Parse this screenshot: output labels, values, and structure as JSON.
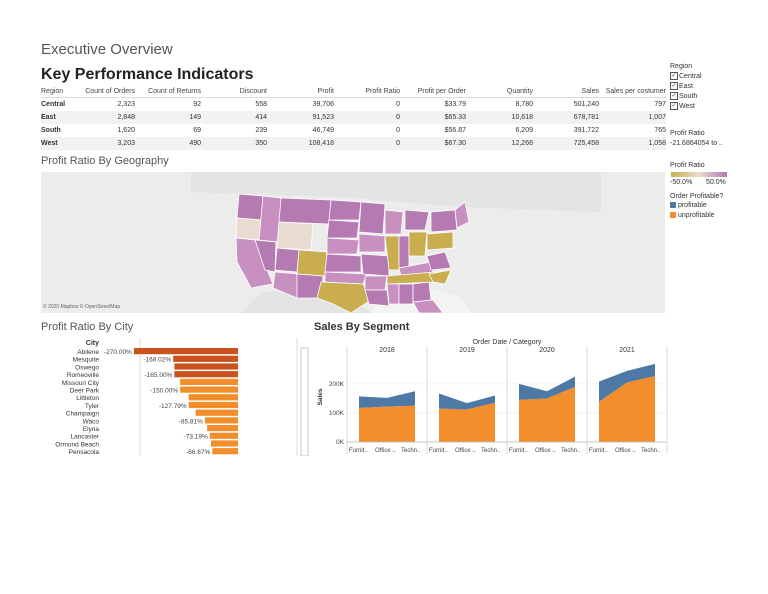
{
  "page": {
    "title": "Executive Overview",
    "kpi_title": "Key Performance Indicators",
    "geo_title": "Profit Ratio By Geography",
    "city_title": "Profit Ratio By City",
    "segment_title": "Sales By Segment",
    "map_credit": "© 2025 Mapbox © OpenStreetMap"
  },
  "kpi": {
    "columns": [
      "Region",
      "Count of Orders",
      "Count of Returns",
      "Discount",
      "Profit",
      "Profit Ratio",
      "Profit per Order",
      "Quantity",
      "Sales",
      "Sales per costumer"
    ],
    "rows": [
      [
        "Central",
        "2,323",
        "92",
        "558",
        "39,706",
        "0",
        "$33.79",
        "8,780",
        "501,240",
        "797"
      ],
      [
        "East",
        "2,848",
        "149",
        "414",
        "91,523",
        "0",
        "$65.33",
        "10,618",
        "678,781",
        "1,007"
      ],
      [
        "South",
        "1,620",
        "69",
        "239",
        "46,749",
        "0",
        "$56.87",
        "6,209",
        "391,722",
        "765"
      ],
      [
        "West",
        "3,203",
        "490",
        "350",
        "108,418",
        "0",
        "$67.30",
        "12,266",
        "725,458",
        "1,058"
      ]
    ]
  },
  "legend": {
    "region_title": "Region",
    "regions": [
      {
        "label": "Central",
        "checked": true
      },
      {
        "label": "East",
        "checked": true
      },
      {
        "label": "South",
        "checked": true
      },
      {
        "label": "West",
        "checked": true
      }
    ],
    "check_glyph": "✓",
    "profit_ratio_filter_title": "Profit Ratio",
    "profit_ratio_filter_value": "-21.6864054 to ..",
    "profit_ratio_color_title": "Profit Ratio",
    "color_min": "-50.0%",
    "color_max": "50.0%",
    "order_profitable_title": "Order Profitable?",
    "order_profitable_items": [
      {
        "label": "profitable",
        "color": "#4e79a7"
      },
      {
        "label": "unprofitable",
        "color": "#f28e2b"
      }
    ]
  },
  "colors": {
    "ratio_negative": "#c9ad4f",
    "ratio_neutral": "#e8dcd0",
    "ratio_positive": "#b47ab1",
    "bar_dark": "#c9521f",
    "bar_light": "#f28e2b",
    "segment_top": "#4e79a7",
    "segment_bottom": "#f28e2b"
  },
  "city_chart": {
    "type": "bar",
    "axis_label": "City",
    "categories": [
      "Abilene",
      "Mesquite",
      "Oswego",
      "Romeoville",
      "Missouri City",
      "Deer Park",
      "Littleton",
      "Tyler",
      "Champaign",
      "Waco",
      "Elyria",
      "Lancaster",
      "Ormond Beach",
      "Pensacola"
    ],
    "values": [
      -270.0,
      -168.02,
      -165.0,
      -165.0,
      -150.0,
      -150.0,
      -127.79,
      -127.79,
      -110.0,
      -85.81,
      -80.0,
      -73.19,
      -70.0,
      -66.67
    ],
    "data_labels": [
      "-270.00%",
      "-168.02%",
      "",
      "-165.00%",
      "",
      "-150.00%",
      "",
      "-127.79%",
      "",
      "-85.81%",
      "",
      "-73.19%",
      "",
      "-66.67%"
    ],
    "xlim": [
      -280,
      0
    ]
  },
  "chart_data": {
    "type": "area",
    "title": "Sales By Segment",
    "header": "Order Date / Category",
    "years": [
      "2018",
      "2019",
      "2020",
      "2021"
    ],
    "categories": [
      "Furnit..",
      "Office ..",
      "Techn.."
    ],
    "ylabel": "Sales",
    "yticks": [
      "0K",
      "100K",
      "200K"
    ],
    "ylim": [
      0,
      310000
    ],
    "series": [
      {
        "name": "unprofitable",
        "values": [
          [
            117000,
            122000,
            125000
          ],
          [
            115000,
            112000,
            135000
          ],
          [
            145000,
            150000,
            190000
          ],
          [
            138000,
            205000,
            227000
          ]
        ]
      },
      {
        "name": "profitable",
        "values": [
          [
            40000,
            30000,
            50000
          ],
          [
            52000,
            22000,
            25000
          ],
          [
            55000,
            25000,
            35000
          ],
          [
            70000,
            40000,
            42000
          ]
        ]
      }
    ]
  }
}
